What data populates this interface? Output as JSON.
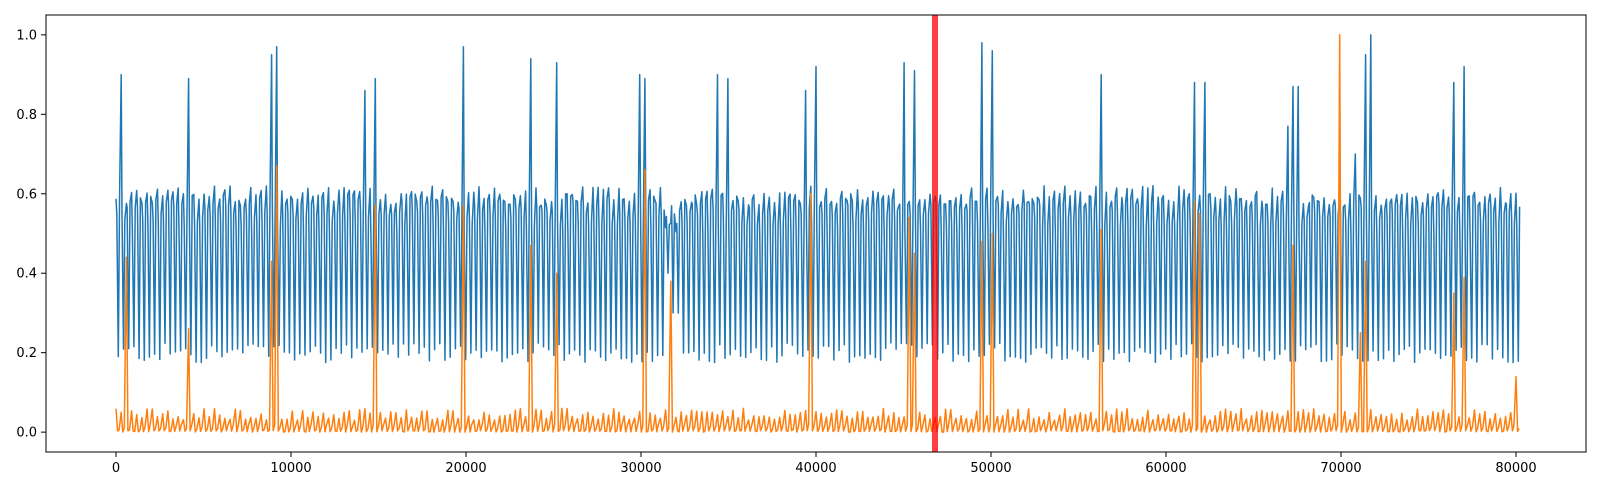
{
  "chart_data": {
    "type": "line",
    "title": "",
    "xlabel": "",
    "ylabel": "",
    "xlim": [
      -4000,
      84000
    ],
    "ylim": [
      -0.05,
      1.05
    ],
    "x_ticks": [
      0,
      10000,
      20000,
      30000,
      40000,
      50000,
      60000,
      70000,
      80000
    ],
    "y_ticks": [
      0.0,
      0.2,
      0.4,
      0.6,
      0.8,
      1.0
    ],
    "x_tick_labels": [
      "0",
      "10000",
      "20000",
      "30000",
      "40000",
      "50000",
      "60000",
      "70000",
      "80000"
    ],
    "y_tick_labels": [
      "0.0",
      "0.2",
      "0.4",
      "0.6",
      "0.8",
      "1.0"
    ],
    "grid": false,
    "legend": "none",
    "x_range": [
      0,
      80000
    ],
    "series": [
      {
        "color": "#1f77b4",
        "typical_range": [
          0.2,
          0.62
        ],
        "peaks": [
          {
            "x": 400,
            "y": 0.9
          },
          {
            "x": 4200,
            "y": 0.89
          },
          {
            "x": 8800,
            "y": 0.95
          },
          {
            "x": 9100,
            "y": 0.97
          },
          {
            "x": 14200,
            "y": 0.86
          },
          {
            "x": 14700,
            "y": 0.93
          },
          {
            "x": 14900,
            "y": 0.89
          },
          {
            "x": 19800,
            "y": 0.97
          },
          {
            "x": 23600,
            "y": 0.94
          },
          {
            "x": 25100,
            "y": 0.93
          },
          {
            "x": 29800,
            "y": 0.9
          },
          {
            "x": 30200,
            "y": 0.89
          },
          {
            "x": 34500,
            "y": 0.9
          },
          {
            "x": 34900,
            "y": 0.89
          },
          {
            "x": 39500,
            "y": 0.86
          },
          {
            "x": 39900,
            "y": 0.92
          },
          {
            "x": 45100,
            "y": 0.93
          },
          {
            "x": 45500,
            "y": 0.91
          },
          {
            "x": 49600,
            "y": 0.98
          },
          {
            "x": 50100,
            "y": 0.96
          },
          {
            "x": 56200,
            "y": 0.9
          },
          {
            "x": 61700,
            "y": 0.88
          },
          {
            "x": 62100,
            "y": 0.88
          },
          {
            "x": 67000,
            "y": 0.77
          },
          {
            "x": 67400,
            "y": 0.87
          },
          {
            "x": 70800,
            "y": 0.7
          },
          {
            "x": 71300,
            "y": 0.95
          },
          {
            "x": 71600,
            "y": 1.0
          },
          {
            "x": 76400,
            "y": 0.88
          },
          {
            "x": 77000,
            "y": 0.92
          }
        ],
        "dips": [
          {
            "x": 31500,
            "y": 0.4
          },
          {
            "x": 31900,
            "y": 0.3
          }
        ]
      },
      {
        "color": "#ff7f0e",
        "typical_range": [
          0.0,
          0.06
        ],
        "peaks": [
          {
            "x": 500,
            "y": 0.44
          },
          {
            "x": 4200,
            "y": 0.26
          },
          {
            "x": 8900,
            "y": 0.43
          },
          {
            "x": 9200,
            "y": 0.67
          },
          {
            "x": 14700,
            "y": 0.57
          },
          {
            "x": 19800,
            "y": 0.57
          },
          {
            "x": 23600,
            "y": 0.47
          },
          {
            "x": 25100,
            "y": 0.4
          },
          {
            "x": 30100,
            "y": 0.66
          },
          {
            "x": 31600,
            "y": 0.38
          },
          {
            "x": 39800,
            "y": 0.6
          },
          {
            "x": 45300,
            "y": 0.54
          },
          {
            "x": 45600,
            "y": 0.45
          },
          {
            "x": 49600,
            "y": 0.48
          },
          {
            "x": 50000,
            "y": 0.5
          },
          {
            "x": 56200,
            "y": 0.51
          },
          {
            "x": 61700,
            "y": 0.58
          },
          {
            "x": 62000,
            "y": 0.55
          },
          {
            "x": 67200,
            "y": 0.47
          },
          {
            "x": 69800,
            "y": 0.58
          },
          {
            "x": 70000,
            "y": 1.0
          },
          {
            "x": 71200,
            "y": 0.25
          },
          {
            "x": 71400,
            "y": 0.43
          },
          {
            "x": 76500,
            "y": 0.35
          },
          {
            "x": 77000,
            "y": 0.39
          },
          {
            "x": 79900,
            "y": 0.14
          }
        ]
      }
    ],
    "highlight": {
      "x": 46800,
      "color": "#ff0000",
      "opacity": 0.75
    }
  }
}
